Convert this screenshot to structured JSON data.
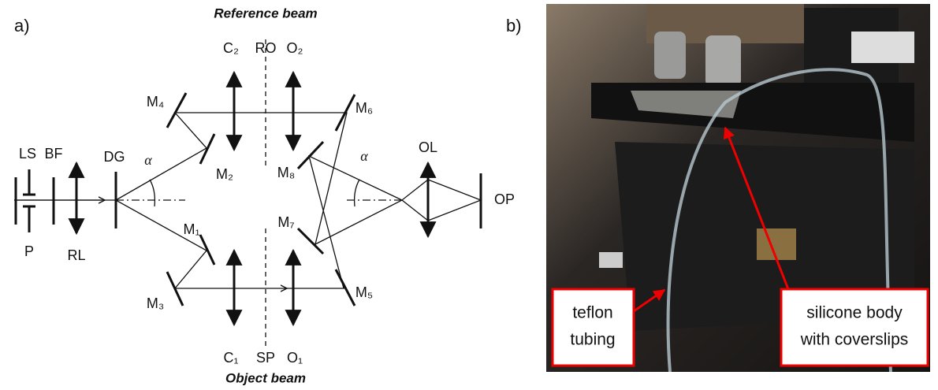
{
  "panel_a": {
    "tag": "a)",
    "reference_beam": "Reference beam",
    "object_beam": "Object beam",
    "labels": {
      "LS": "LS",
      "BF": "BF",
      "DG": "DG",
      "P": "P",
      "RL": "RL",
      "M1": "M₁",
      "M2": "M₂",
      "M3": "M₃",
      "M4": "M₄",
      "M5": "M₅",
      "M6": "M₆",
      "M7": "M₇",
      "M8": "M₈",
      "C1": "C₁",
      "C2": "C₂",
      "O1": "O₁",
      "O2": "O₂",
      "RO": "RO",
      "SP": "SP",
      "OL": "OL",
      "OP": "OP",
      "alpha_left": "α",
      "alpha_right": "α"
    }
  },
  "panel_b": {
    "tag": "b)",
    "callouts": [
      {
        "lines": [
          "teflon",
          "tubing"
        ]
      },
      {
        "lines": [
          "silicone body",
          "with coverslips"
        ]
      }
    ]
  }
}
